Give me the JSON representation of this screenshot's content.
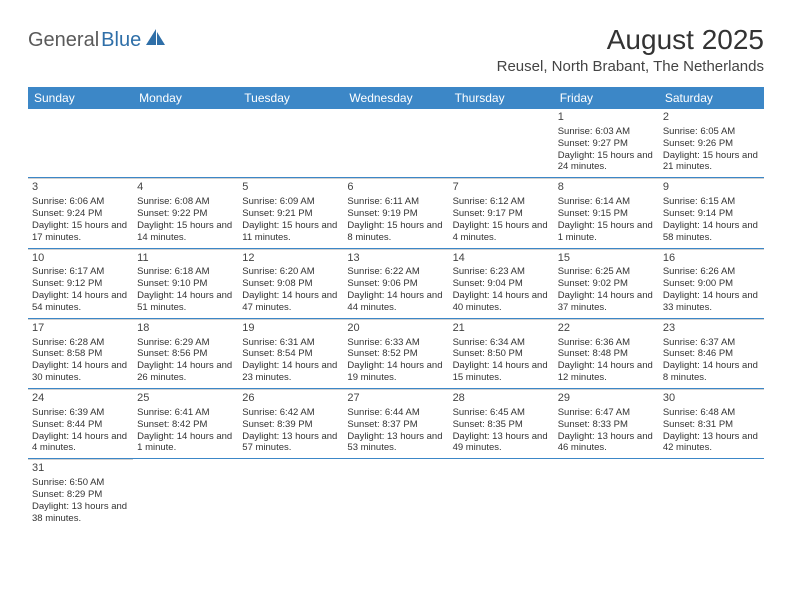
{
  "brand": {
    "part1": "General",
    "part2": "Blue"
  },
  "title": "August 2025",
  "location": "Reusel, North Brabant, The Netherlands",
  "colors": {
    "header_bg": "#3c87c7",
    "header_text": "#ffffff",
    "row_divider": "#3c87c7",
    "cell_divider": "#d0d0d0",
    "text": "#333333",
    "brand_gray": "#5a5a5a",
    "brand_blue": "#2f6fa8",
    "background": "#ffffff"
  },
  "dayNames": [
    "Sunday",
    "Monday",
    "Tuesday",
    "Wednesday",
    "Thursday",
    "Friday",
    "Saturday"
  ],
  "weeks": [
    [
      null,
      null,
      null,
      null,
      null,
      {
        "n": "1",
        "sr": "Sunrise: 6:03 AM",
        "ss": "Sunset: 9:27 PM",
        "dl": "Daylight: 15 hours and 24 minutes."
      },
      {
        "n": "2",
        "sr": "Sunrise: 6:05 AM",
        "ss": "Sunset: 9:26 PM",
        "dl": "Daylight: 15 hours and 21 minutes."
      }
    ],
    [
      {
        "n": "3",
        "sr": "Sunrise: 6:06 AM",
        "ss": "Sunset: 9:24 PM",
        "dl": "Daylight: 15 hours and 17 minutes."
      },
      {
        "n": "4",
        "sr": "Sunrise: 6:08 AM",
        "ss": "Sunset: 9:22 PM",
        "dl": "Daylight: 15 hours and 14 minutes."
      },
      {
        "n": "5",
        "sr": "Sunrise: 6:09 AM",
        "ss": "Sunset: 9:21 PM",
        "dl": "Daylight: 15 hours and 11 minutes."
      },
      {
        "n": "6",
        "sr": "Sunrise: 6:11 AM",
        "ss": "Sunset: 9:19 PM",
        "dl": "Daylight: 15 hours and 8 minutes."
      },
      {
        "n": "7",
        "sr": "Sunrise: 6:12 AM",
        "ss": "Sunset: 9:17 PM",
        "dl": "Daylight: 15 hours and 4 minutes."
      },
      {
        "n": "8",
        "sr": "Sunrise: 6:14 AM",
        "ss": "Sunset: 9:15 PM",
        "dl": "Daylight: 15 hours and 1 minute."
      },
      {
        "n": "9",
        "sr": "Sunrise: 6:15 AM",
        "ss": "Sunset: 9:14 PM",
        "dl": "Daylight: 14 hours and 58 minutes."
      }
    ],
    [
      {
        "n": "10",
        "sr": "Sunrise: 6:17 AM",
        "ss": "Sunset: 9:12 PM",
        "dl": "Daylight: 14 hours and 54 minutes."
      },
      {
        "n": "11",
        "sr": "Sunrise: 6:18 AM",
        "ss": "Sunset: 9:10 PM",
        "dl": "Daylight: 14 hours and 51 minutes."
      },
      {
        "n": "12",
        "sr": "Sunrise: 6:20 AM",
        "ss": "Sunset: 9:08 PM",
        "dl": "Daylight: 14 hours and 47 minutes."
      },
      {
        "n": "13",
        "sr": "Sunrise: 6:22 AM",
        "ss": "Sunset: 9:06 PM",
        "dl": "Daylight: 14 hours and 44 minutes."
      },
      {
        "n": "14",
        "sr": "Sunrise: 6:23 AM",
        "ss": "Sunset: 9:04 PM",
        "dl": "Daylight: 14 hours and 40 minutes."
      },
      {
        "n": "15",
        "sr": "Sunrise: 6:25 AM",
        "ss": "Sunset: 9:02 PM",
        "dl": "Daylight: 14 hours and 37 minutes."
      },
      {
        "n": "16",
        "sr": "Sunrise: 6:26 AM",
        "ss": "Sunset: 9:00 PM",
        "dl": "Daylight: 14 hours and 33 minutes."
      }
    ],
    [
      {
        "n": "17",
        "sr": "Sunrise: 6:28 AM",
        "ss": "Sunset: 8:58 PM",
        "dl": "Daylight: 14 hours and 30 minutes."
      },
      {
        "n": "18",
        "sr": "Sunrise: 6:29 AM",
        "ss": "Sunset: 8:56 PM",
        "dl": "Daylight: 14 hours and 26 minutes."
      },
      {
        "n": "19",
        "sr": "Sunrise: 6:31 AM",
        "ss": "Sunset: 8:54 PM",
        "dl": "Daylight: 14 hours and 23 minutes."
      },
      {
        "n": "20",
        "sr": "Sunrise: 6:33 AM",
        "ss": "Sunset: 8:52 PM",
        "dl": "Daylight: 14 hours and 19 minutes."
      },
      {
        "n": "21",
        "sr": "Sunrise: 6:34 AM",
        "ss": "Sunset: 8:50 PM",
        "dl": "Daylight: 14 hours and 15 minutes."
      },
      {
        "n": "22",
        "sr": "Sunrise: 6:36 AM",
        "ss": "Sunset: 8:48 PM",
        "dl": "Daylight: 14 hours and 12 minutes."
      },
      {
        "n": "23",
        "sr": "Sunrise: 6:37 AM",
        "ss": "Sunset: 8:46 PM",
        "dl": "Daylight: 14 hours and 8 minutes."
      }
    ],
    [
      {
        "n": "24",
        "sr": "Sunrise: 6:39 AM",
        "ss": "Sunset: 8:44 PM",
        "dl": "Daylight: 14 hours and 4 minutes."
      },
      {
        "n": "25",
        "sr": "Sunrise: 6:41 AM",
        "ss": "Sunset: 8:42 PM",
        "dl": "Daylight: 14 hours and 1 minute."
      },
      {
        "n": "26",
        "sr": "Sunrise: 6:42 AM",
        "ss": "Sunset: 8:39 PM",
        "dl": "Daylight: 13 hours and 57 minutes."
      },
      {
        "n": "27",
        "sr": "Sunrise: 6:44 AM",
        "ss": "Sunset: 8:37 PM",
        "dl": "Daylight: 13 hours and 53 minutes."
      },
      {
        "n": "28",
        "sr": "Sunrise: 6:45 AM",
        "ss": "Sunset: 8:35 PM",
        "dl": "Daylight: 13 hours and 49 minutes."
      },
      {
        "n": "29",
        "sr": "Sunrise: 6:47 AM",
        "ss": "Sunset: 8:33 PM",
        "dl": "Daylight: 13 hours and 46 minutes."
      },
      {
        "n": "30",
        "sr": "Sunrise: 6:48 AM",
        "ss": "Sunset: 8:31 PM",
        "dl": "Daylight: 13 hours and 42 minutes."
      }
    ],
    [
      {
        "n": "31",
        "sr": "Sunrise: 6:50 AM",
        "ss": "Sunset: 8:29 PM",
        "dl": "Daylight: 13 hours and 38 minutes."
      },
      null,
      null,
      null,
      null,
      null,
      null
    ]
  ]
}
